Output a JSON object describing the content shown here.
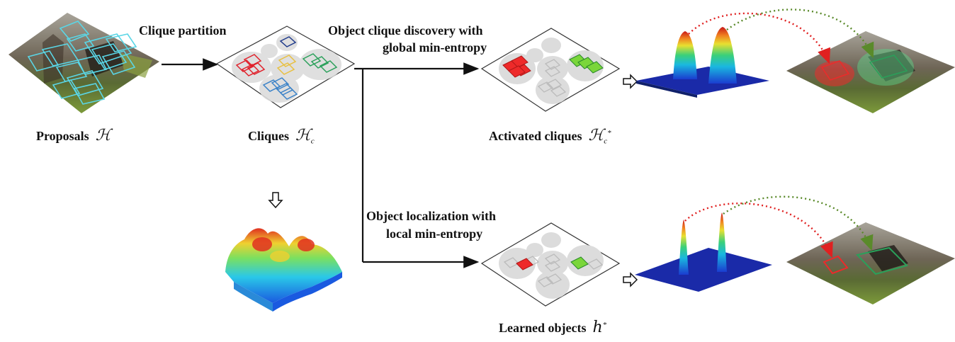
{
  "labels": {
    "clique_partition": "Clique partition",
    "discovery_line1": "Object clique discovery with",
    "discovery_line2": "global min-entropy",
    "localization_line1": "Object localization with",
    "localization_line2": "local min-entropy",
    "proposals": "Proposals",
    "proposals_symbol": "ℋ",
    "cliques": "Cliques",
    "cliques_symbol": "ℋ",
    "cliques_sub": "c",
    "activated": "Activated cliques",
    "activated_symbol": "ℋ",
    "activated_sub": "c",
    "activated_sup": "*",
    "learned": "Learned objects",
    "learned_symbol": "h",
    "learned_sup": "*"
  },
  "colors": {
    "proposal_box": "#5ad6e6",
    "clique_red": "#e0202a",
    "clique_blue": "#3a82c8",
    "clique_green": "#2aa05a",
    "clique_yellow": "#e8c040",
    "clique_navy": "#1f3a8a",
    "active_red": "#ee2a2a",
    "active_green": "#7ad63a",
    "inactive_gray": "#c8c8c8",
    "arrow_red": "#e02020",
    "arrow_green": "#5a8a2a",
    "heat_base": "#1a2aa8"
  }
}
